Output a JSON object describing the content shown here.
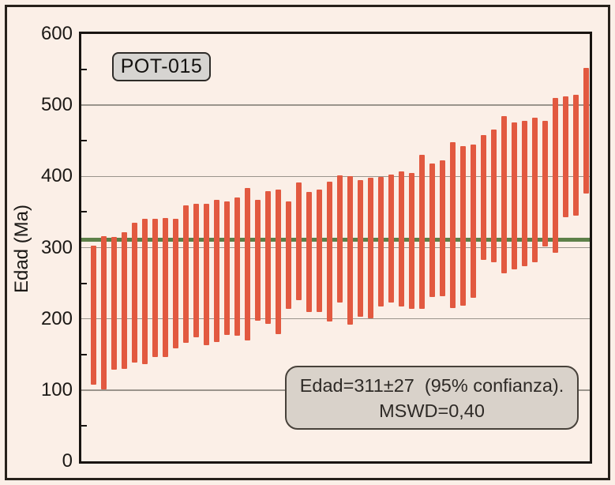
{
  "sample_label": "POT-015",
  "annotation": {
    "line1": "Edad=311±27  (95% confianza).",
    "line2": "MSWD=0,40",
    "mean_age": 311,
    "uncertainty": 27,
    "confidence": "95%",
    "mswd": "0,40"
  },
  "y_axis": {
    "label": "Edad (Ma)",
    "ticks": [
      0,
      100,
      200,
      300,
      400,
      500,
      600
    ],
    "minor_ticks": [
      50,
      150,
      250,
      350,
      450,
      550
    ]
  },
  "colors": {
    "background": "#fbefe7",
    "bar": "#e25940",
    "mean_line": "#5d8049",
    "gridline": "#9a948c",
    "axis": "#181411",
    "text": "#1c1916"
  },
  "chart_data": {
    "type": "bar",
    "subtype": "floating-error-bars",
    "title": "POT-015",
    "xlabel": "",
    "ylabel": "Edad (Ma)",
    "ylim": [
      0,
      600
    ],
    "grid": true,
    "mean_line_value": 311,
    "n_analyses": 49,
    "bars_lo_hi": [
      [
        108,
        303
      ],
      [
        101,
        316
      ],
      [
        129,
        315
      ],
      [
        130,
        322
      ],
      [
        139,
        335
      ],
      [
        136,
        340
      ],
      [
        146,
        341
      ],
      [
        146,
        342
      ],
      [
        159,
        341
      ],
      [
        166,
        359
      ],
      [
        174,
        361
      ],
      [
        163,
        362
      ],
      [
        168,
        367
      ],
      [
        178,
        365
      ],
      [
        176,
        370
      ],
      [
        170,
        384
      ],
      [
        197,
        367
      ],
      [
        193,
        379
      ],
      [
        179,
        381
      ],
      [
        214,
        365
      ],
      [
        226,
        392
      ],
      [
        210,
        378
      ],
      [
        210,
        382
      ],
      [
        196,
        393
      ],
      [
        223,
        401
      ],
      [
        192,
        400
      ],
      [
        203,
        395
      ],
      [
        201,
        398
      ],
      [
        217,
        399
      ],
      [
        223,
        403
      ],
      [
        217,
        407
      ],
      [
        214,
        405
      ],
      [
        214,
        430
      ],
      [
        231,
        418
      ],
      [
        232,
        423
      ],
      [
        215,
        448
      ],
      [
        219,
        443
      ],
      [
        230,
        445
      ],
      [
        283,
        458
      ],
      [
        280,
        466
      ],
      [
        264,
        485
      ],
      [
        270,
        476
      ],
      [
        274,
        478
      ],
      [
        280,
        482
      ],
      [
        302,
        478
      ],
      [
        293,
        510
      ],
      [
        343,
        512
      ],
      [
        345,
        515
      ],
      [
        376,
        552
      ]
    ]
  }
}
